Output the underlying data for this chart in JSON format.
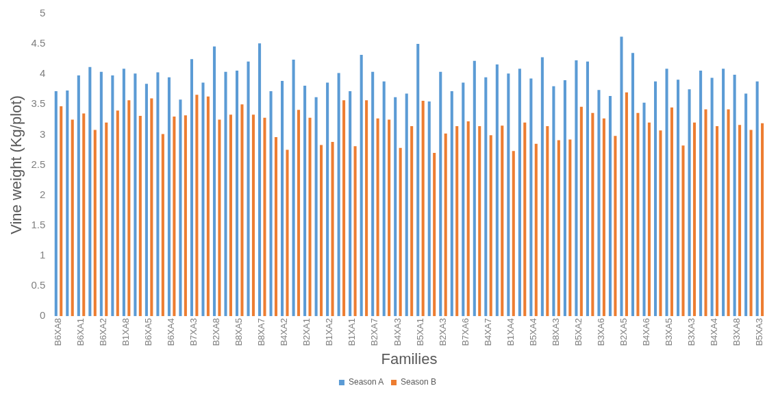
{
  "chart_data": {
    "type": "bar",
    "xlabel": "Families",
    "ylabel": "Vine weight (Kg/plot)",
    "categories": [
      "B6XA8",
      null,
      "B6XA1",
      null,
      "B6XA2",
      null,
      "B1XA8",
      null,
      "B6XA5",
      null,
      "B6XA4",
      null,
      "B7XA3",
      null,
      "B2XA8",
      null,
      "B8XA5",
      null,
      "B8XA7",
      null,
      "B4XA2",
      null,
      "B2XA1",
      null,
      "B1XA2",
      null,
      "B1XA1",
      null,
      "B2XA7",
      null,
      "B4XA3",
      null,
      "B5XA1",
      null,
      "B2XA3",
      null,
      "B7XA6",
      null,
      "B4XA7",
      null,
      "B1XA4",
      null,
      "B5XA4",
      null,
      "B8XA3",
      null,
      "B5XA2",
      null,
      "B3XA6",
      null,
      "B2XA5",
      null,
      "B4XA6",
      null,
      "B3XA5",
      null,
      "B3XA3",
      null,
      "B4XA4",
      null,
      "B3XA8",
      null,
      "B5XA3"
    ],
    "series": [
      {
        "name": "Season A",
        "color": "#5b9bd5",
        "values": [
          3.72,
          3.73,
          3.98,
          4.12,
          4.04,
          3.98,
          4.09,
          4.01,
          3.84,
          4.03,
          3.95,
          3.58,
          4.25,
          3.86,
          4.46,
          4.04,
          4.06,
          4.21,
          4.51,
          3.72,
          3.89,
          4.24,
          3.81,
          3.62,
          3.86,
          4.02,
          3.72,
          4.32,
          4.04,
          3.88,
          3.62,
          3.68,
          4.5,
          3.55,
          4.04,
          3.72,
          3.86,
          4.22,
          3.95,
          4.16,
          4.01,
          4.09,
          3.93,
          4.28,
          3.8,
          3.9,
          4.23,
          4.21,
          3.74,
          3.64,
          4.62,
          4.35,
          3.53,
          3.88,
          4.09,
          3.91,
          3.75,
          4.06,
          3.94,
          4.09,
          3.99,
          3.68,
          3.88
        ]
      },
      {
        "name": "Season B",
        "color": "#ed7d31",
        "values": [
          3.47,
          3.25,
          3.35,
          3.08,
          3.2,
          3.4,
          3.57,
          3.31,
          3.6,
          3.01,
          3.3,
          3.32,
          3.66,
          3.63,
          3.25,
          3.33,
          3.5,
          3.33,
          3.28,
          2.96,
          2.75,
          3.41,
          3.28,
          2.83,
          2.88,
          3.57,
          2.81,
          3.57,
          3.27,
          3.25,
          2.78,
          3.14,
          3.56,
          2.7,
          3.02,
          3.14,
          3.22,
          3.14,
          2.99,
          3.15,
          2.73,
          3.2,
          2.85,
          3.14,
          2.91,
          2.92,
          3.46,
          3.36,
          3.27,
          2.98,
          3.7,
          3.36,
          3.2,
          3.07,
          3.45,
          2.82,
          3.2,
          3.42,
          3.14,
          3.42,
          3.16,
          3.08,
          3.19
        ]
      }
    ],
    "ylim": [
      0,
      5
    ],
    "yticks": [
      0,
      0.5,
      1,
      1.5,
      2,
      2.5,
      3,
      3.5,
      4,
      4.5,
      5
    ],
    "grid": false,
    "legend": "bottom"
  }
}
